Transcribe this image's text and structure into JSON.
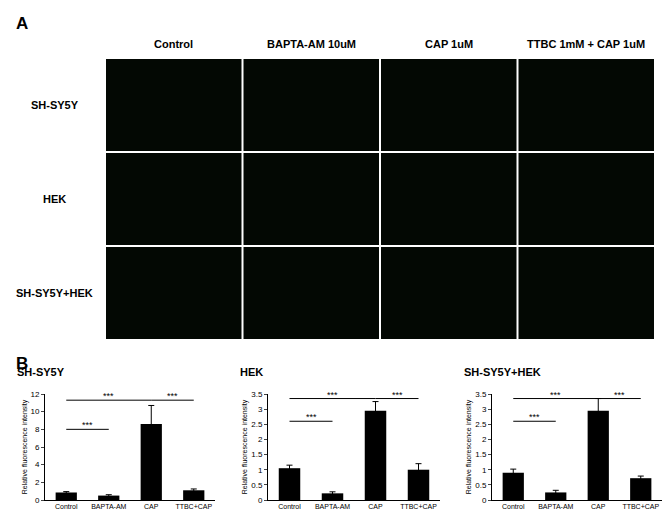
{
  "figure": {
    "panel_a": {
      "label": "A",
      "columns": [
        "Control",
        "BAPTA-AM 10uM",
        "CAP 1uM",
        "TTBC 1mM + CAP 1uM"
      ],
      "rows": [
        "SH-SY5Y",
        "HEK",
        "SH-SY5Y+HEK"
      ]
    },
    "panel_b_label": "B"
  },
  "chart_data": [
    {
      "type": "bar",
      "title": "SH-SY5Y",
      "y_label": "Relative fluorescence intensity",
      "categories": [
        "Control",
        "BAPTA-AM",
        "CAP",
        "TTBC+CAP"
      ],
      "values": [
        0.85,
        0.5,
        8.6,
        1.1
      ],
      "errors": [
        0.1,
        0.1,
        2.1,
        0.15
      ],
      "color": "#000000",
      "ylim": [
        0,
        12
      ],
      "yticks": [
        0,
        2,
        4,
        6,
        8,
        10,
        12
      ],
      "grid": false,
      "significance": [
        {
          "from": "Control",
          "to": "BAPTA-AM",
          "y": 8.0,
          "label": "***"
        },
        {
          "from": "Control",
          "to": "CAP",
          "y": 11.3,
          "label": "***"
        },
        {
          "from": "CAP",
          "to": "TTBC+CAP",
          "y": 11.3,
          "label": "***"
        }
      ]
    },
    {
      "type": "bar",
      "title": "HEK",
      "y_label": "Relative fluorescence intensity",
      "categories": [
        "Control",
        "BAPTA-AM",
        "CAP",
        "TTBC+CAP"
      ],
      "values": [
        1.05,
        0.22,
        2.95,
        1.0
      ],
      "errors": [
        0.1,
        0.05,
        0.3,
        0.2
      ],
      "color": "#000000",
      "ylim": [
        0,
        3.5
      ],
      "yticks": [
        0,
        0.5,
        1,
        1.5,
        2,
        2.5,
        3,
        3.5
      ],
      "grid": false,
      "significance": [
        {
          "from": "Control",
          "to": "BAPTA-AM",
          "y": 2.6,
          "label": "***"
        },
        {
          "from": "Control",
          "to": "CAP",
          "y": 3.35,
          "label": "***"
        },
        {
          "from": "CAP",
          "to": "TTBC+CAP",
          "y": 3.35,
          "label": "***"
        }
      ]
    },
    {
      "type": "bar",
      "title": "SH-SY5Y+HEK",
      "y_label": "Relative fluorescence intensity",
      "categories": [
        "Control",
        "BAPTA-AM",
        "CAP",
        "TTBC+CAP"
      ],
      "values": [
        0.9,
        0.25,
        2.95,
        0.72
      ],
      "errors": [
        0.12,
        0.07,
        0.4,
        0.07
      ],
      "color": "#000000",
      "ylim": [
        0,
        3.5
      ],
      "yticks": [
        0,
        0.5,
        1,
        1.5,
        2,
        2.5,
        3,
        3.5
      ],
      "grid": false,
      "significance": [
        {
          "from": "Control",
          "to": "BAPTA-AM",
          "y": 2.6,
          "label": "***"
        },
        {
          "from": "Control",
          "to": "CAP",
          "y": 3.35,
          "label": "***"
        },
        {
          "from": "CAP",
          "to": "TTBC+CAP",
          "y": 3.35,
          "label": "***"
        }
      ]
    }
  ]
}
